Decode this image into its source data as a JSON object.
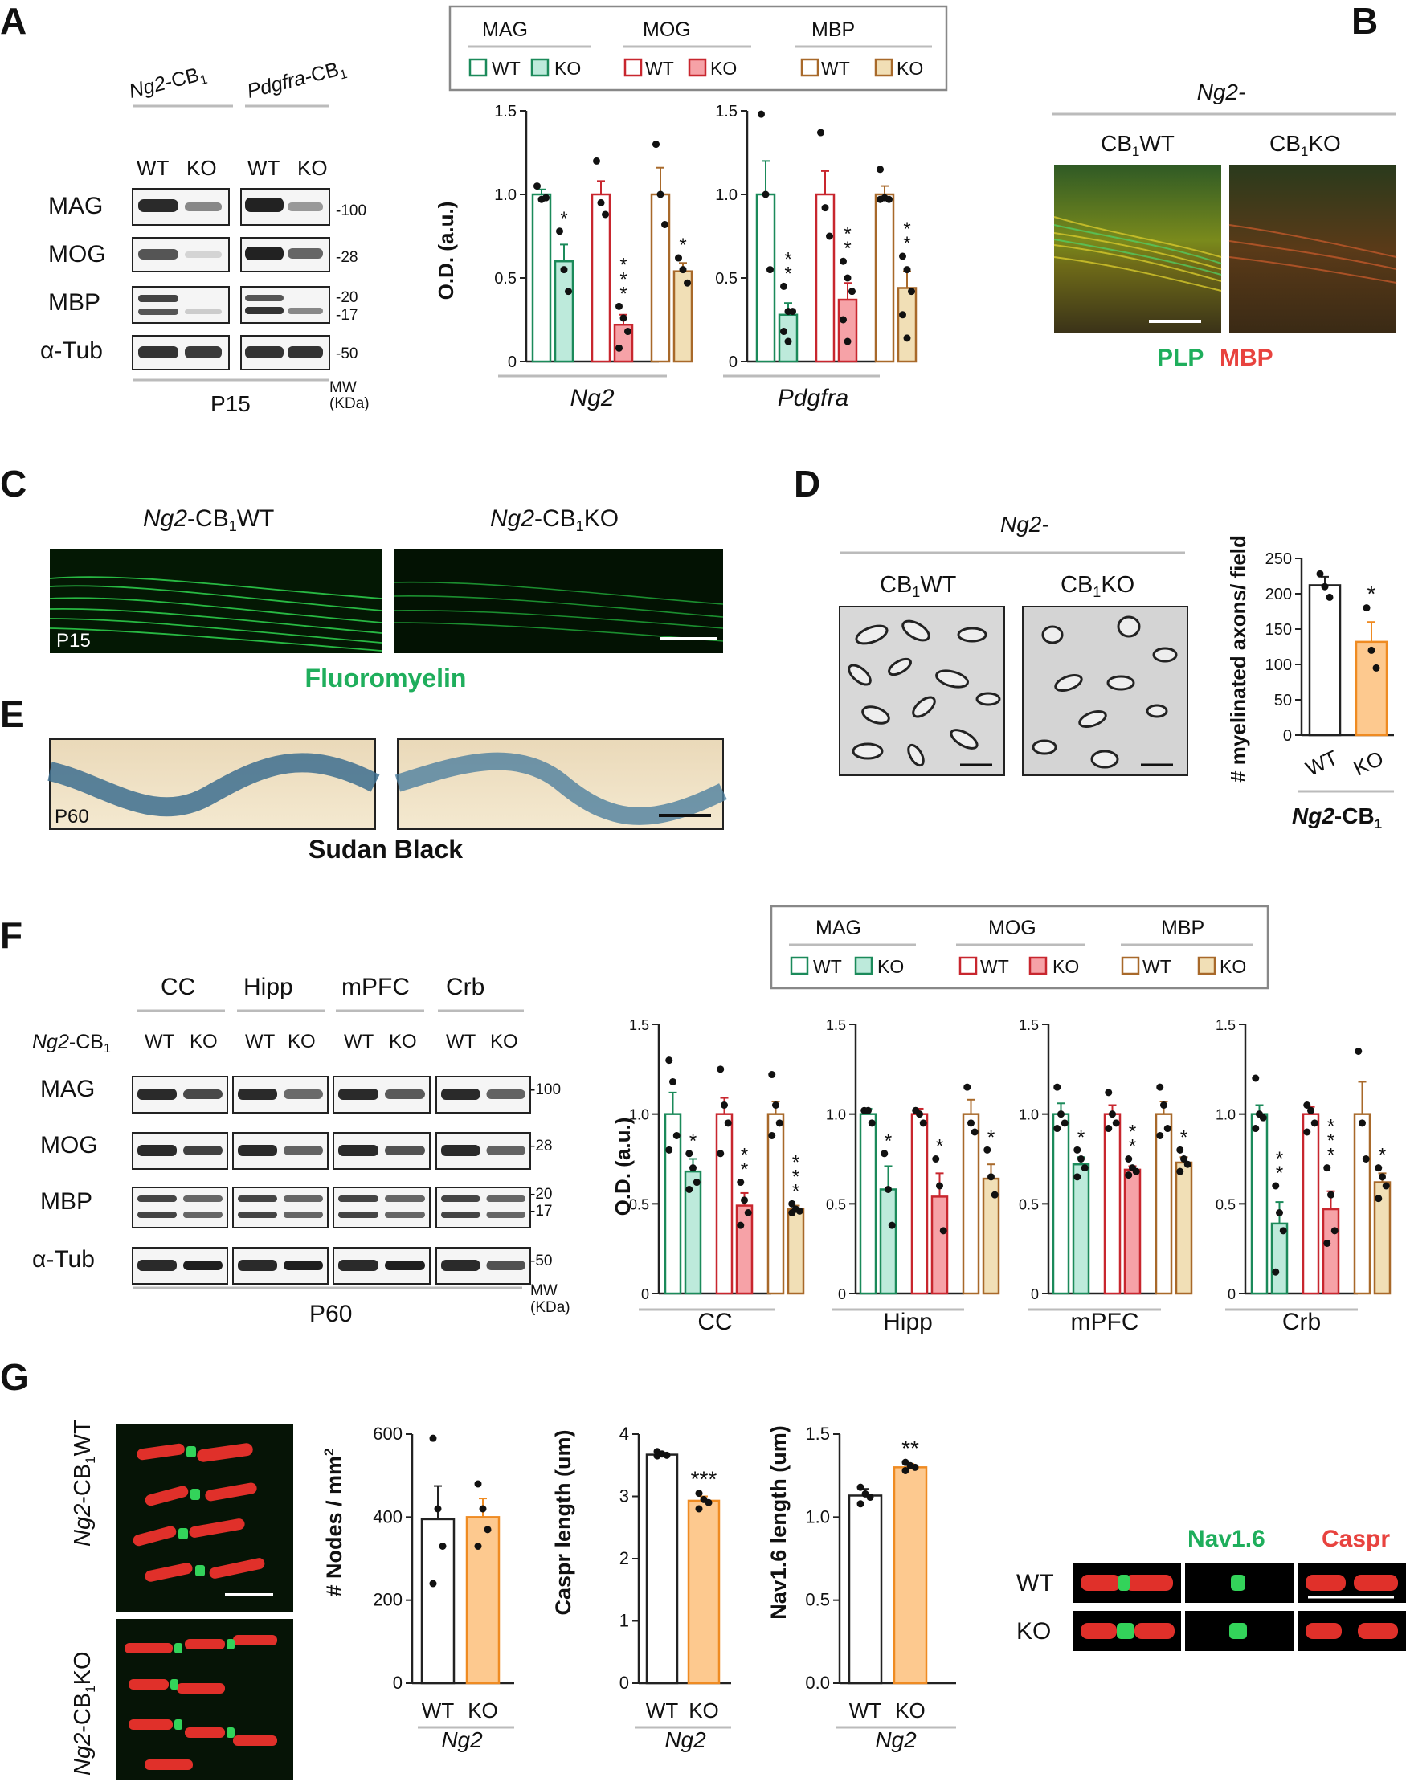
{
  "panels": {
    "A": "A",
    "B": "B",
    "C": "C",
    "D": "D",
    "E": "E",
    "F": "F",
    "G": "G"
  },
  "colors": {
    "mag_edge": "#1b8a5a",
    "mag_fill": "#bdeadb",
    "mog_edge": "#c8262e",
    "mog_fill": "#f6a2a7",
    "mbp_edge": "#a8692a",
    "mbp_fill": "#f1dfb6",
    "ko_orange_fill": "#fdc98f",
    "ko_orange_edge": "#ef8b22",
    "plp_green": "#1fae5c",
    "mbp_red": "#e8433f"
  },
  "legend": {
    "groups": [
      {
        "name": "MAG",
        "wt": "WT",
        "ko": "KO",
        "key": "mag"
      },
      {
        "name": "MOG",
        "wt": "WT",
        "ko": "KO",
        "key": "mog"
      },
      {
        "name": "MBP",
        "wt": "WT",
        "ko": "KO",
        "key": "mbp"
      }
    ]
  },
  "panelA": {
    "lines": [
      {
        "prefix": "Ng2",
        "suffix": "-CB",
        "sub": "1"
      },
      {
        "prefix": "Pdgfra",
        "suffix": "-CB",
        "sub": "1"
      }
    ],
    "genotypes": [
      "WT",
      "KO",
      "WT",
      "KO"
    ],
    "proteins": [
      "MAG",
      "MOG",
      "MBP",
      "α-Tub"
    ],
    "mw": [
      "-100",
      "-28",
      "-20",
      "-17",
      "-50"
    ],
    "mw_label": "MW",
    "mw_unit": "(KDa)",
    "age": "P15"
  },
  "panelB": {
    "title": "Ng2-",
    "col1": "WT",
    "col2": "KO",
    "cb": "CB",
    "sub": "1",
    "stain1": "PLP",
    "stain2": "MBP"
  },
  "panelC": {
    "col1": "WT",
    "col2": "KO",
    "prefix": "Ng2",
    "cb": "-CB",
    "sub": "1",
    "age": "P15",
    "stain": "Fluoromyelin"
  },
  "panelD": {
    "title": "Ng2-",
    "col1": "WT",
    "col2": "KO",
    "cb": "CB",
    "sub": "1",
    "xlabel_prefix": "Ng2",
    "xlabel_suffix": "-CB",
    "xlabel_sub": "1"
  },
  "panelE": {
    "age": "P60",
    "stain": "Sudan Black"
  },
  "panelF": {
    "regions": [
      "CC",
      "Hipp",
      "mPFC",
      "Crb"
    ],
    "line_prefix": "Ng2",
    "line_suffix": "-CB",
    "line_sub": "1",
    "genotypes": [
      "WT",
      "KO"
    ],
    "proteins": [
      "MAG",
      "MOG",
      "MBP",
      "α-Tub"
    ],
    "mw": [
      "-100",
      "-28",
      "-20",
      "-17",
      "-50"
    ],
    "mw_label": "MW",
    "mw_unit": "(KDa)",
    "age": "P60"
  },
  "panelG": {
    "rows": [
      "WT",
      "KO"
    ],
    "prefix": "Ng2",
    "cb": "-CB",
    "sub": "1",
    "inset_cols": [
      "Nav1.6",
      "Caspr"
    ]
  },
  "chart_data": [
    {
      "id": "A_Ng2",
      "type": "bar",
      "xlabel": "Ng2",
      "ylabel": "O.D.  (a.u.)",
      "ylim": [
        0,
        1.5
      ],
      "yticks": [
        "0",
        "0.5",
        "1.0",
        "1.5"
      ],
      "series": [
        {
          "name": "MAG WT",
          "value": 1.0,
          "err": 0.03,
          "points": [
            1.05,
            0.97,
            0.98
          ]
        },
        {
          "name": "MAG KO",
          "value": 0.6,
          "err": 0.1,
          "points": [
            0.78,
            0.55,
            0.42
          ],
          "sig": "*"
        },
        {
          "name": "MOG WT",
          "value": 1.0,
          "err": 0.08,
          "points": [
            1.2,
            0.95,
            0.88
          ]
        },
        {
          "name": "MOG KO",
          "value": 0.22,
          "err": 0.06,
          "points": [
            0.33,
            0.26,
            0.18,
            0.08
          ],
          "sig": "***"
        },
        {
          "name": "MBP WT",
          "value": 1.0,
          "err": 0.16,
          "points": [
            1.3,
            1.0,
            0.82
          ]
        },
        {
          "name": "MBP KO",
          "value": 0.54,
          "err": 0.05,
          "points": [
            0.62,
            0.55,
            0.47
          ],
          "sig": "*"
        }
      ]
    },
    {
      "id": "A_Pdgfra",
      "type": "bar",
      "xlabel": "Pdgfra",
      "ylabel": "",
      "ylim": [
        0,
        1.5
      ],
      "yticks": [
        "0",
        "0.5",
        "1.0",
        "1.5"
      ],
      "series": [
        {
          "name": "MAG WT",
          "value": 1.0,
          "err": 0.2,
          "points": [
            1.48,
            1.0,
            0.55
          ]
        },
        {
          "name": "MAG KO",
          "value": 0.28,
          "err": 0.07,
          "points": [
            0.45,
            0.3,
            0.3,
            0.18,
            0.12
          ],
          "sig": "**"
        },
        {
          "name": "MOG WT",
          "value": 1.0,
          "err": 0.14,
          "points": [
            1.37,
            0.92,
            0.75
          ]
        },
        {
          "name": "MOG KO",
          "value": 0.37,
          "err": 0.1,
          "points": [
            0.6,
            0.5,
            0.42,
            0.25,
            0.12
          ],
          "sig": "**"
        },
        {
          "name": "MBP WT",
          "value": 1.0,
          "err": 0.05,
          "points": [
            1.15,
            0.98,
            0.97,
            0.97
          ]
        },
        {
          "name": "MBP KO",
          "value": 0.44,
          "err": 0.1,
          "points": [
            0.63,
            0.55,
            0.42,
            0.28,
            0.14
          ],
          "sig": "**"
        }
      ]
    },
    {
      "id": "D",
      "type": "bar",
      "ylabel": "# myelinated axons/ field",
      "ylim": [
        0,
        250
      ],
      "yticks": [
        "0",
        "50",
        "100",
        "150",
        "200",
        "250"
      ],
      "categories": [
        "WT",
        "KO"
      ],
      "series": [
        {
          "name": "WT",
          "value": 212,
          "err": 12,
          "points": [
            228,
            210,
            195
          ]
        },
        {
          "name": "KO",
          "value": 132,
          "err": 28,
          "points": [
            180,
            120,
            95
          ],
          "sig": "*"
        }
      ]
    },
    {
      "id": "F_CC",
      "type": "bar",
      "xlabel": "CC",
      "ylabel": "O.D.  (a.u.)",
      "ylim": [
        0,
        1.5
      ],
      "yticks": [
        "0",
        "0.5",
        "1.0",
        "1.5"
      ],
      "series": [
        {
          "name": "MAG WT",
          "value": 1.0,
          "err": 0.12,
          "points": [
            1.3,
            1.18,
            0.88,
            0.8
          ]
        },
        {
          "name": "MAG KO",
          "value": 0.68,
          "err": 0.07,
          "points": [
            0.78,
            0.7,
            0.62,
            0.58
          ],
          "sig": "*"
        },
        {
          "name": "MOG WT",
          "value": 1.0,
          "err": 0.09,
          "points": [
            1.25,
            1.05,
            0.95,
            0.78
          ]
        },
        {
          "name": "MOG KO",
          "value": 0.49,
          "err": 0.07,
          "points": [
            0.62,
            0.52,
            0.45,
            0.38
          ],
          "sig": "**"
        },
        {
          "name": "MBP WT",
          "value": 1.0,
          "err": 0.07,
          "points": [
            1.22,
            1.05,
            0.95,
            0.88
          ]
        },
        {
          "name": "MBP KO",
          "value": 0.47,
          "err": 0.02,
          "points": [
            0.5,
            0.47,
            0.46,
            0.45
          ],
          "sig": "***"
        }
      ]
    },
    {
      "id": "F_Hipp",
      "type": "bar",
      "xlabel": "Hipp",
      "ylabel": "",
      "ylim": [
        0,
        1.5
      ],
      "yticks": [
        "0",
        "0.5",
        "1.0",
        "1.5"
      ],
      "series": [
        {
          "name": "MAG WT",
          "value": 1.0,
          "err": 0.03,
          "points": [
            1.02,
            1.02,
            0.95
          ]
        },
        {
          "name": "MAG KO",
          "value": 0.58,
          "err": 0.13,
          "points": [
            0.78,
            0.58,
            0.38
          ],
          "sig": "*"
        },
        {
          "name": "MOG WT",
          "value": 1.0,
          "err": 0.03,
          "points": [
            1.02,
            1.0,
            0.95
          ]
        },
        {
          "name": "MOG KO",
          "value": 0.54,
          "err": 0.13,
          "points": [
            0.75,
            0.6,
            0.35
          ],
          "sig": "*"
        },
        {
          "name": "MBP WT",
          "value": 1.0,
          "err": 0.08,
          "points": [
            1.15,
            0.95,
            0.9
          ]
        },
        {
          "name": "MBP KO",
          "value": 0.64,
          "err": 0.08,
          "points": [
            0.8,
            0.65,
            0.55
          ],
          "sig": "*"
        }
      ]
    },
    {
      "id": "F_mPFC",
      "type": "bar",
      "xlabel": "mPFC",
      "ylabel": "",
      "ylim": [
        0,
        1.5
      ],
      "yticks": [
        "0",
        "0.5",
        "1.0",
        "1.5"
      ],
      "series": [
        {
          "name": "MAG WT",
          "value": 1.0,
          "err": 0.06,
          "points": [
            1.15,
            1.0,
            0.95,
            0.92
          ]
        },
        {
          "name": "MAG KO",
          "value": 0.72,
          "err": 0.04,
          "points": [
            0.8,
            0.75,
            0.7,
            0.65
          ],
          "sig": "*"
        },
        {
          "name": "MOG WT",
          "value": 1.0,
          "err": 0.05,
          "points": [
            1.12,
            1.0,
            0.95,
            0.92
          ]
        },
        {
          "name": "MOG KO",
          "value": 0.69,
          "err": 0.02,
          "points": [
            0.75,
            0.7,
            0.68,
            0.66
          ],
          "sig": "**"
        },
        {
          "name": "MBP WT",
          "value": 1.0,
          "err": 0.07,
          "points": [
            1.15,
            1.05,
            0.92,
            0.88
          ]
        },
        {
          "name": "MBP KO",
          "value": 0.73,
          "err": 0.03,
          "points": [
            0.8,
            0.75,
            0.72,
            0.68
          ],
          "sig": "*"
        }
      ]
    },
    {
      "id": "F_Crb",
      "type": "bar",
      "xlabel": "Crb",
      "ylabel": "",
      "ylim": [
        0,
        1.5
      ],
      "yticks": [
        "0",
        "0.5",
        "1.0",
        "1.5"
      ],
      "series": [
        {
          "name": "MAG WT",
          "value": 1.0,
          "err": 0.05,
          "points": [
            1.2,
            1.0,
            0.98,
            0.92
          ]
        },
        {
          "name": "MAG KO",
          "value": 0.39,
          "err": 0.12,
          "points": [
            0.6,
            0.45,
            0.35,
            0.12
          ],
          "sig": "**"
        },
        {
          "name": "MOG WT",
          "value": 1.0,
          "err": 0.04,
          "points": [
            1.05,
            1.02,
            0.95,
            0.9
          ]
        },
        {
          "name": "MOG KO",
          "value": 0.47,
          "err": 0.1,
          "points": [
            0.7,
            0.55,
            0.35,
            0.28
          ],
          "sig": "***"
        },
        {
          "name": "MBP WT",
          "value": 1.0,
          "err": 0.18,
          "points": [
            1.35,
            0.95,
            0.75
          ]
        },
        {
          "name": "MBP KO",
          "value": 0.62,
          "err": 0.05,
          "points": [
            0.7,
            0.65,
            0.6,
            0.53
          ],
          "sig": "*"
        }
      ]
    },
    {
      "id": "G_nodes",
      "type": "bar",
      "ylabel": "# Nodes / mm",
      "ylabel_sup": "2",
      "xlabel": "Ng2",
      "ylim": [
        0,
        600
      ],
      "yticks": [
        "0",
        "200",
        "400",
        "600"
      ],
      "categories": [
        "WT",
        "KO"
      ],
      "series": [
        {
          "name": "WT",
          "value": 395,
          "err": 80,
          "points": [
            590,
            420,
            330,
            240
          ]
        },
        {
          "name": "KO",
          "value": 400,
          "err": 45,
          "points": [
            480,
            420,
            370,
            330
          ]
        }
      ]
    },
    {
      "id": "G_caspr",
      "type": "bar",
      "ylabel": "Caspr length (um)",
      "xlabel": "Ng2",
      "ylim": [
        0,
        4
      ],
      "yticks": [
        "0",
        "1",
        "2",
        "3",
        "4"
      ],
      "categories": [
        "WT",
        "KO"
      ],
      "series": [
        {
          "name": "WT",
          "value": 3.67,
          "err": 0.03,
          "points": [
            3.72,
            3.68,
            3.66,
            3.65
          ]
        },
        {
          "name": "KO",
          "value": 2.93,
          "err": 0.07,
          "points": [
            3.05,
            2.95,
            2.9,
            2.8
          ],
          "sig": "***"
        }
      ]
    },
    {
      "id": "G_nav",
      "type": "bar",
      "ylabel": "Nav1.6 length (um)",
      "xlabel": "Ng2",
      "ylim": [
        0,
        1.5
      ],
      "yticks": [
        "0.0",
        "0.5",
        "1.0",
        "1.5"
      ],
      "categories": [
        "WT",
        "KO"
      ],
      "series": [
        {
          "name": "WT",
          "value": 1.13,
          "err": 0.04,
          "points": [
            1.18,
            1.14,
            1.12,
            1.08
          ]
        },
        {
          "name": "KO",
          "value": 1.3,
          "err": 0.02,
          "points": [
            1.33,
            1.31,
            1.3,
            1.28
          ],
          "sig": "**"
        }
      ]
    }
  ]
}
